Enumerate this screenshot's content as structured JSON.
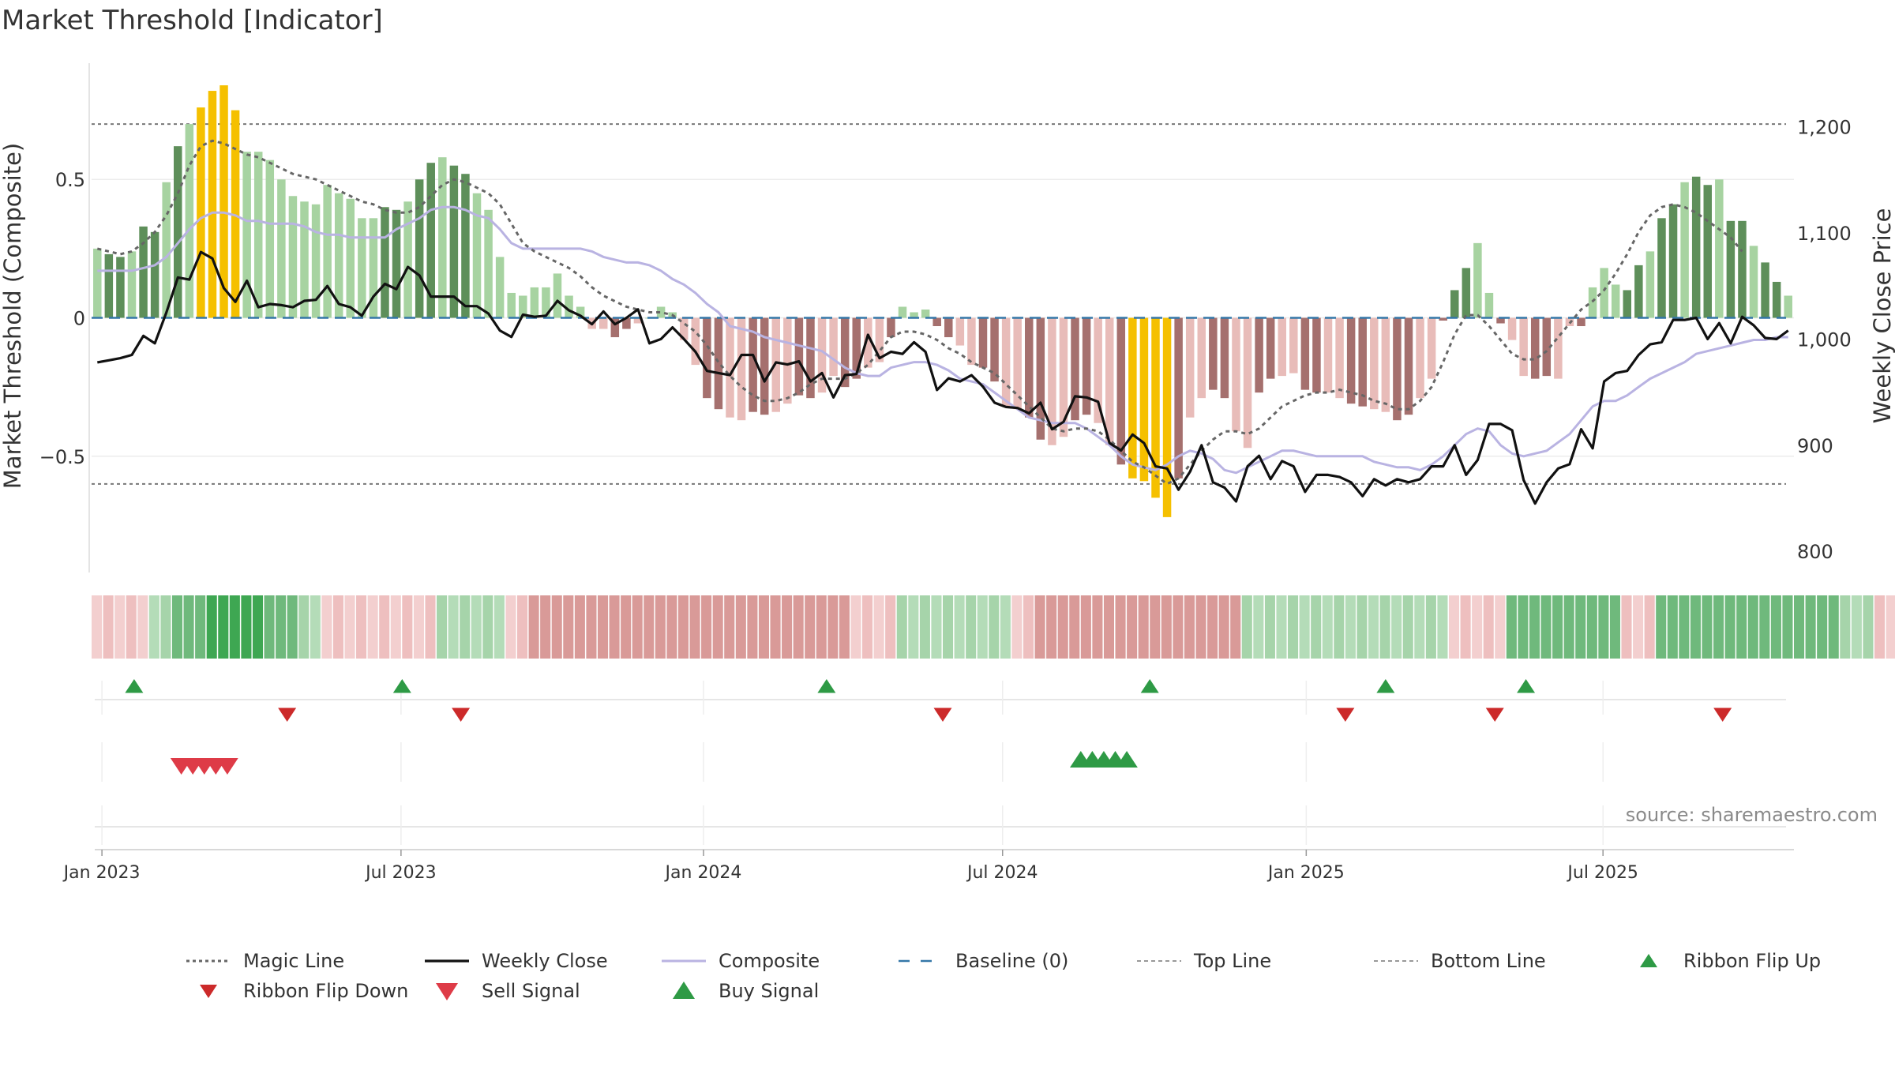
{
  "title": "Market Threshold [Indicator]",
  "source": "source: sharemaestro.com",
  "chart_data": {
    "type": "bar",
    "ylabel_left": "Market Threshold (Composite)",
    "ylabel_right": "Weekly Close Price",
    "ylim_left": [
      -0.92,
      0.92
    ],
    "ylim_right": [
      780,
      1260
    ],
    "yticks_left": [
      {
        "v": 0.5,
        "label": "0.5"
      },
      {
        "v": 0,
        "label": "0"
      },
      {
        "v": -0.5,
        "label": "−0.5"
      }
    ],
    "yticks_right": [
      {
        "v": 1200,
        "label": "1,200"
      },
      {
        "v": 1100,
        "label": "1,100"
      },
      {
        "v": 1000,
        "label": "1,000"
      },
      {
        "v": 900,
        "label": "900"
      },
      {
        "v": 800,
        "label": "800"
      }
    ],
    "xticks": [
      {
        "w": 0.4,
        "label": "Jan 2023"
      },
      {
        "w": 26.4,
        "label": "Jul 2023"
      },
      {
        "w": 52.7,
        "label": "Jan 2024"
      },
      {
        "w": 78.7,
        "label": "Jul 2024"
      },
      {
        "w": 105.1,
        "label": "Jan 2025"
      },
      {
        "w": 130.9,
        "label": "Jul 2025"
      }
    ],
    "top_line": 0.7,
    "bottom_line": -0.6,
    "baseline": 0,
    "colors": {
      "strong_pos": "#5e8f5a",
      "weak_pos": "#a7d3a1",
      "strong_neg": "#a5706e",
      "weak_neg": "#e8bcb9",
      "extreme": "#f5c000",
      "magic_line": "#666666",
      "weekly_close": "#111111",
      "composite": "#b9b3e2",
      "baseline": "#3477a8",
      "threshold": "#777777",
      "ribbon_flip_up": "#2e9a45",
      "ribbon_flip_down": "#cc2a2a",
      "sell_signal": "#de3b47",
      "buy_signal": "#2e9a45"
    },
    "bars": [
      0.25,
      0.23,
      0.22,
      0.24,
      0.33,
      0.31,
      0.49,
      0.62,
      0.7,
      0.76,
      0.82,
      0.84,
      0.75,
      0.6,
      0.6,
      0.57,
      0.5,
      0.44,
      0.42,
      0.41,
      0.48,
      0.45,
      0.43,
      0.36,
      0.36,
      0.4,
      0.39,
      0.42,
      0.5,
      0.56,
      0.58,
      0.55,
      0.52,
      0.45,
      0.39,
      0.22,
      0.09,
      0.08,
      0.11,
      0.11,
      0.16,
      0.08,
      0.04,
      -0.04,
      -0.04,
      -0.07,
      -0.04,
      -0.02,
      0.0,
      0.04,
      0.02,
      -0.08,
      -0.17,
      -0.29,
      -0.33,
      -0.36,
      -0.37,
      -0.34,
      -0.35,
      -0.34,
      -0.31,
      -0.28,
      -0.29,
      -0.27,
      -0.21,
      -0.25,
      -0.22,
      -0.18,
      -0.16,
      -0.07,
      0.04,
      0.02,
      0.03,
      -0.03,
      -0.07,
      -0.1,
      -0.17,
      -0.18,
      -0.23,
      -0.32,
      -0.33,
      -0.36,
      -0.44,
      -0.46,
      -0.43,
      -0.37,
      -0.35,
      -0.38,
      -0.46,
      -0.53,
      -0.58,
      -0.59,
      -0.65,
      -0.72,
      -0.58,
      -0.36,
      -0.29,
      -0.26,
      -0.29,
      -0.41,
      -0.47,
      -0.27,
      -0.22,
      -0.21,
      -0.2,
      -0.26,
      -0.27,
      -0.27,
      -0.29,
      -0.31,
      -0.32,
      -0.33,
      -0.34,
      -0.37,
      -0.35,
      -0.29,
      -0.22,
      -0.01,
      0.1,
      0.18,
      0.27,
      0.09,
      -0.02,
      -0.08,
      -0.21,
      -0.22,
      -0.21,
      -0.22,
      -0.03,
      -0.03,
      0.11,
      0.18,
      0.12,
      0.1,
      0.19,
      0.24,
      0.36,
      0.41,
      0.49,
      0.51,
      0.48,
      0.5,
      0.35,
      0.35,
      0.26,
      0.2,
      0.13,
      0.08
    ],
    "extreme_bars": [
      9,
      10,
      11,
      12,
      90,
      91,
      92,
      93
    ],
    "weekly_close": [
      978,
      980,
      982,
      985,
      1003,
      996,
      1025,
      1058,
      1056,
      1082,
      1076,
      1048,
      1035,
      1055,
      1030,
      1033,
      1032,
      1030,
      1036,
      1037,
      1050,
      1033,
      1030,
      1022,
      1040,
      1052,
      1047,
      1068,
      1060,
      1040,
      1040,
      1040,
      1031,
      1031,
      1024,
      1008,
      1002,
      1023,
      1021,
      1022,
      1036,
      1027,
      1022,
      1014,
      1026,
      1014,
      1020,
      1028,
      996,
      1000,
      1011,
      1000,
      988,
      970,
      968,
      966,
      985,
      985,
      960,
      978,
      976,
      979,
      960,
      968,
      945,
      966,
      967,
      1004,
      982,
      988,
      986,
      997,
      988,
      952,
      963,
      960,
      966,
      955,
      940,
      936,
      935,
      930,
      940,
      915,
      922,
      946,
      945,
      941,
      902,
      895,
      910,
      902,
      880,
      878,
      858,
      875,
      900,
      865,
      860,
      847,
      880,
      890,
      868,
      885,
      880,
      856,
      872,
      872,
      870,
      865,
      852,
      868,
      862,
      868,
      865,
      868,
      880,
      880,
      900,
      872,
      886,
      920,
      920,
      914,
      867,
      845,
      865,
      878,
      882,
      915,
      897,
      960,
      968,
      970,
      985,
      995,
      997,
      1018,
      1018,
      1020,
      1000,
      1015,
      996,
      1021,
      1013,
      1001,
      1000,
      1008
    ],
    "composite_line": [
      0.17,
      0.17,
      0.17,
      0.17,
      0.18,
      0.19,
      0.22,
      0.27,
      0.32,
      0.36,
      0.38,
      0.38,
      0.37,
      0.35,
      0.35,
      0.34,
      0.34,
      0.34,
      0.33,
      0.31,
      0.3,
      0.3,
      0.29,
      0.29,
      0.29,
      0.29,
      0.32,
      0.34,
      0.36,
      0.39,
      0.4,
      0.4,
      0.39,
      0.37,
      0.36,
      0.32,
      0.27,
      0.25,
      0.25,
      0.25,
      0.25,
      0.25,
      0.25,
      0.24,
      0.22,
      0.21,
      0.2,
      0.2,
      0.19,
      0.17,
      0.14,
      0.12,
      0.09,
      0.05,
      0.02,
      -0.03,
      -0.04,
      -0.05,
      -0.07,
      -0.08,
      -0.09,
      -0.1,
      -0.11,
      -0.12,
      -0.15,
      -0.18,
      -0.2,
      -0.21,
      -0.21,
      -0.18,
      -0.17,
      -0.16,
      -0.16,
      -0.17,
      -0.19,
      -0.22,
      -0.23,
      -0.24,
      -0.27,
      -0.3,
      -0.33,
      -0.36,
      -0.37,
      -0.38,
      -0.38,
      -0.38,
      -0.4,
      -0.43,
      -0.46,
      -0.5,
      -0.53,
      -0.54,
      -0.55,
      -0.53,
      -0.5,
      -0.48,
      -0.49,
      -0.51,
      -0.55,
      -0.56,
      -0.54,
      -0.52,
      -0.5,
      -0.48,
      -0.48,
      -0.49,
      -0.5,
      -0.5,
      -0.5,
      -0.5,
      -0.5,
      -0.52,
      -0.53,
      -0.54,
      -0.54,
      -0.55,
      -0.53,
      -0.5,
      -0.46,
      -0.42,
      -0.4,
      -0.41,
      -0.46,
      -0.49,
      -0.5,
      -0.49,
      -0.48,
      -0.45,
      -0.42,
      -0.37,
      -0.32,
      -0.3,
      -0.3,
      -0.28,
      -0.25,
      -0.22,
      -0.2,
      -0.18,
      -0.16,
      -0.13,
      -0.12,
      -0.11,
      -0.1,
      -0.09,
      -0.08,
      -0.08,
      -0.07,
      -0.07
    ],
    "magic_line": [
      0.25,
      0.24,
      0.23,
      0.24,
      0.27,
      0.31,
      0.37,
      0.45,
      0.55,
      0.62,
      0.64,
      0.63,
      0.61,
      0.59,
      0.58,
      0.56,
      0.54,
      0.52,
      0.51,
      0.5,
      0.48,
      0.46,
      0.44,
      0.42,
      0.41,
      0.39,
      0.38,
      0.38,
      0.4,
      0.44,
      0.48,
      0.5,
      0.49,
      0.47,
      0.45,
      0.41,
      0.34,
      0.27,
      0.24,
      0.22,
      0.2,
      0.18,
      0.15,
      0.11,
      0.08,
      0.06,
      0.04,
      0.03,
      0.02,
      0.02,
      0.01,
      -0.02,
      -0.05,
      -0.1,
      -0.16,
      -0.21,
      -0.25,
      -0.28,
      -0.3,
      -0.3,
      -0.29,
      -0.27,
      -0.24,
      -0.22,
      -0.22,
      -0.22,
      -0.2,
      -0.17,
      -0.12,
      -0.07,
      -0.05,
      -0.05,
      -0.06,
      -0.08,
      -0.11,
      -0.13,
      -0.16,
      -0.18,
      -0.2,
      -0.24,
      -0.28,
      -0.32,
      -0.36,
      -0.4,
      -0.41,
      -0.4,
      -0.4,
      -0.41,
      -0.44,
      -0.48,
      -0.52,
      -0.54,
      -0.57,
      -0.6,
      -0.58,
      -0.53,
      -0.48,
      -0.44,
      -0.41,
      -0.41,
      -0.42,
      -0.4,
      -0.36,
      -0.32,
      -0.3,
      -0.28,
      -0.27,
      -0.27,
      -0.26,
      -0.27,
      -0.28,
      -0.3,
      -0.31,
      -0.33,
      -0.33,
      -0.3,
      -0.25,
      -0.16,
      -0.06,
      0.01,
      0.01,
      -0.03,
      -0.08,
      -0.13,
      -0.15,
      -0.15,
      -0.12,
      -0.07,
      -0.02,
      0.03,
      0.06,
      0.1,
      0.16,
      0.23,
      0.31,
      0.37,
      0.4,
      0.41,
      0.4,
      0.38,
      0.35,
      0.32,
      0.29,
      0.24
    ],
    "ribbon": [
      -1,
      -1,
      -1,
      -1,
      -1,
      1,
      1,
      2,
      2,
      2,
      3,
      3,
      3,
      3,
      3,
      2,
      2,
      2,
      1,
      1,
      -1,
      -1,
      -1,
      -1,
      -1,
      -1,
      -1,
      -1,
      -1,
      -1,
      1,
      1,
      1,
      1,
      1,
      1,
      -1,
      -1,
      -2,
      -2,
      -2,
      -2,
      -2,
      -2,
      -2,
      -2,
      -2,
      -2,
      -2,
      -2,
      -2,
      -2,
      -2,
      -2,
      -2,
      -2,
      -2,
      -2,
      -2,
      -2,
      -2,
      -2,
      -2,
      -2,
      -2,
      -2,
      -1,
      -1,
      -1,
      -1,
      1,
      1,
      1,
      1,
      1,
      1,
      1,
      1,
      1,
      1,
      -1,
      -1,
      -2,
      -2,
      -2,
      -2,
      -2,
      -2,
      -2,
      -2,
      -2,
      -2,
      -2,
      -2,
      -2,
      -2,
      -2,
      -2,
      -2,
      -2,
      1,
      1,
      1,
      1,
      1,
      1,
      1,
      1,
      1,
      1,
      1,
      1,
      1,
      1,
      1,
      1,
      1,
      1,
      -1,
      -1,
      -1,
      -1,
      -1,
      2,
      2,
      2,
      2,
      2,
      2,
      2,
      2,
      2,
      2,
      -1,
      -1,
      -1,
      2,
      2,
      2,
      2,
      2,
      2,
      2,
      2,
      2,
      2,
      2,
      2,
      2,
      2,
      2,
      2,
      1,
      1,
      1,
      -1,
      -1
    ],
    "ribbon_flip_up_weeks": [
      3.2,
      26.5,
      63.4,
      91.5,
      112,
      124.2
    ],
    "ribbon_flip_down_weeks": [
      16.5,
      31.6,
      73.5,
      108.5,
      121.5,
      141.3
    ],
    "sell_signal_weeks": [
      7.3,
      8.3,
      9.3,
      10.3,
      11.3
    ],
    "buy_signal_weeks": [
      85.5,
      86.5,
      87.5,
      88.5,
      89.5
    ],
    "legend": [
      {
        "label": "Magic Line",
        "symbol": "dotted"
      },
      {
        "label": "Weekly Close",
        "symbol": "solid"
      },
      {
        "label": "Composite",
        "symbol": "composite"
      },
      {
        "label": "Baseline (0)",
        "symbol": "dashed"
      },
      {
        "label": "Top Line",
        "symbol": "thin-dashed"
      },
      {
        "label": "Bottom Line",
        "symbol": "thin-dashed"
      },
      {
        "label": "Ribbon Flip Up",
        "symbol": "tri-up-green"
      },
      {
        "label": "Ribbon Flip Down",
        "symbol": "tri-down-red"
      },
      {
        "label": "Sell Signal",
        "symbol": "tri-down-sell"
      },
      {
        "label": "Buy Signal",
        "symbol": "tri-up-buy"
      }
    ]
  }
}
